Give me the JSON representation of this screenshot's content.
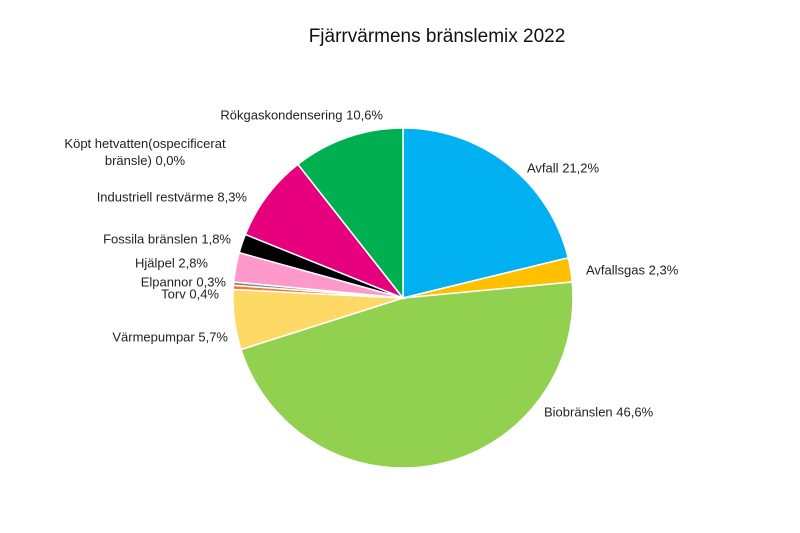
{
  "chart_data": {
    "type": "pie",
    "title": "Fjärrvärmens bränslemix 2022",
    "categories": [
      "Avfall",
      "Avfallsgas",
      "Biobränslen",
      "Värmepumpar",
      "Torv",
      "Elpannor",
      "Hjälpel",
      "Fossila bränslen",
      "Industriell restvärme",
      "Köpt hetvatten(ospecificerat bränsle)",
      "Rökgaskondensering"
    ],
    "values": [
      21.2,
      2.3,
      46.6,
      5.7,
      0.4,
      0.3,
      2.8,
      1.8,
      8.3,
      0.0,
      10.6
    ],
    "value_labels": [
      "21,2%",
      "2,3%",
      "46,6%",
      "5,7%",
      "0,4%",
      "0,3%",
      "2,8%",
      "1,8%",
      "8,3%",
      "0,0%",
      "10,6%"
    ],
    "colors": [
      "#00b0f0",
      "#ffc000",
      "#92d050",
      "#ffd966",
      "#ed7d31",
      "#7f7f7f",
      "#ff99cc",
      "#000000",
      "#e6007e",
      "#a5a5a5",
      "#00b050"
    ]
  }
}
